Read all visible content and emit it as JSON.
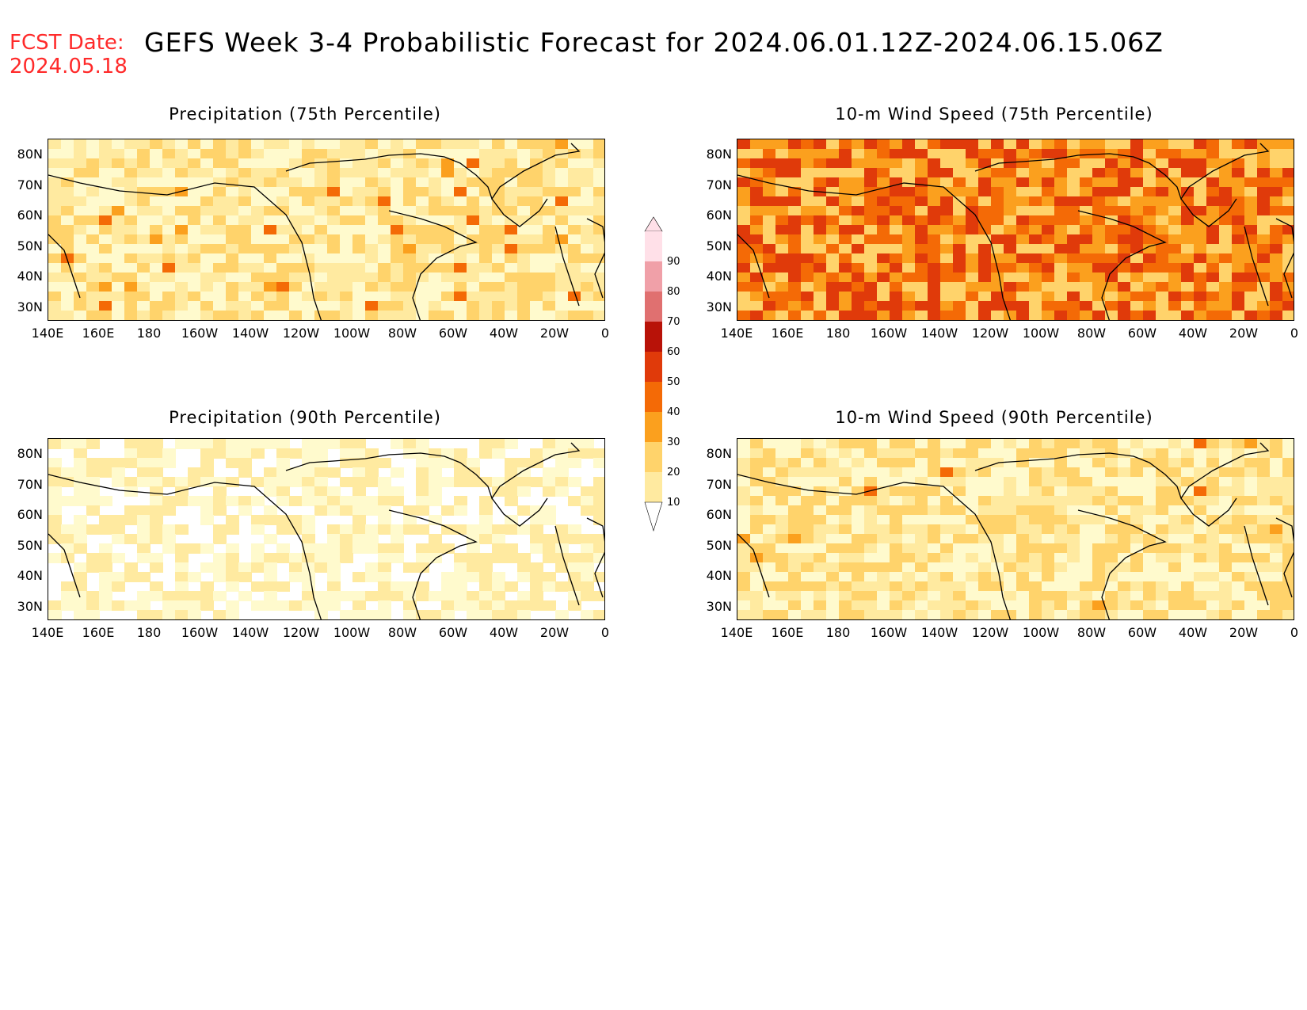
{
  "header": {
    "fcst_label": "FCST Date:",
    "fcst_date": "2024.05.18",
    "title": "GEFS Week 3-4 Probabilistic Forecast for 2024.06.01.12Z-2024.06.15.06Z"
  },
  "axes": {
    "lat_labels": [
      "80N",
      "70N",
      "60N",
      "50N",
      "40N",
      "30N"
    ],
    "lon_labels": [
      "140E",
      "160E",
      "180",
      "160W",
      "140W",
      "120W",
      "100W",
      "80W",
      "60W",
      "40W",
      "20W",
      "0"
    ]
  },
  "panels": [
    {
      "id": "precip75",
      "title": "Precipitation (75th Percentile)",
      "level": "medium"
    },
    {
      "id": "wind75",
      "title": "10-m Wind Speed (75th Percentile)",
      "level": "high"
    },
    {
      "id": "precip90",
      "title": "Precipitation (90th Percentile)",
      "level": "low"
    },
    {
      "id": "wind90",
      "title": "10-m Wind Speed (90th Percentile)",
      "level": "low-medium"
    }
  ],
  "colorbar": {
    "levels": [
      "10",
      "20",
      "30",
      "40",
      "50",
      "60",
      "70",
      "80",
      "90"
    ],
    "colors": [
      "#fffacd",
      "#ffeaa0",
      "#ffd36b",
      "#fba01e",
      "#f46a06",
      "#e03a0a",
      "#b81208",
      "#e07070",
      "#f0a0a8",
      "#ffe0e8"
    ]
  }
}
